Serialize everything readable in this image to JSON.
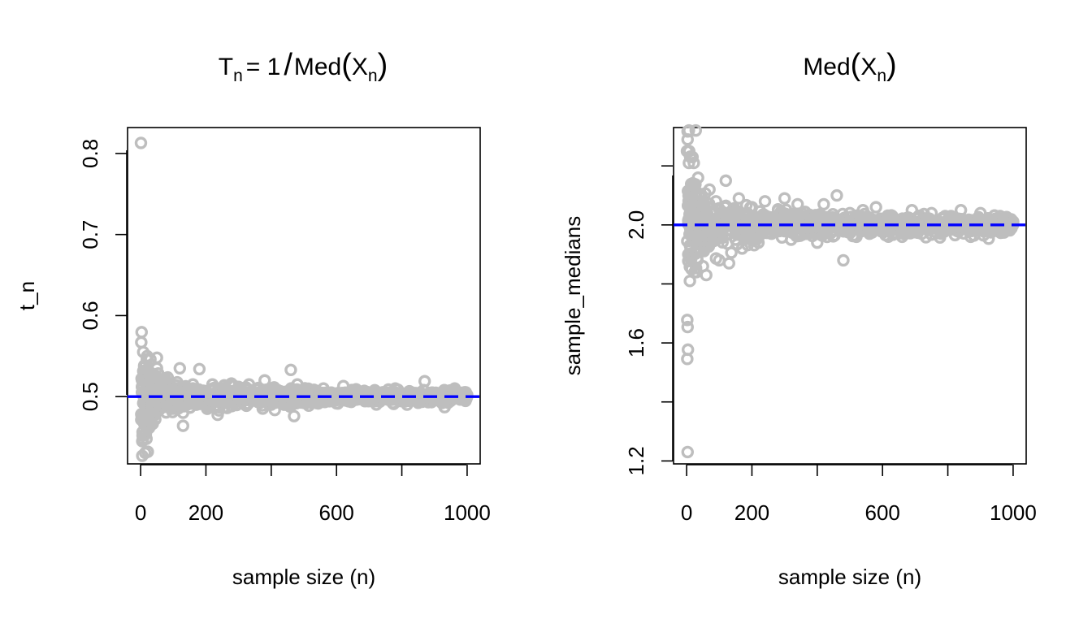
{
  "chart_data": [
    {
      "type": "scatter",
      "title_parts": {
        "t": "T",
        "sub_n": "n",
        "eq": "= 1",
        "slash": "/",
        "med": "Med",
        "lparen": "(",
        "x": "X",
        "sub_x": "n",
        "rparen": ")"
      },
      "xlabel": "sample size (n)",
      "ylabel": "t_n",
      "xlim": [
        -40,
        1040
      ],
      "ylim": [
        0.417,
        0.832
      ],
      "xticks": [
        0,
        200,
        400,
        600,
        800,
        1000
      ],
      "xtick_labels": [
        "0",
        "200",
        "",
        "600",
        "",
        "1000"
      ],
      "yticks": [
        0.5,
        0.6,
        0.7,
        0.8
      ],
      "ytick_labels": [
        "0.5",
        "0.6",
        "0.7",
        "0.8"
      ],
      "reference_line": {
        "y": 0.5,
        "color": "#0000ff",
        "style": "dashed"
      },
      "point_color": "#bebebe",
      "series": [
        {
          "type": "scatter",
          "x": [
            1,
            5,
            8,
            10,
            12,
            15,
            18,
            20,
            22,
            25,
            28,
            30,
            35,
            40,
            45,
            50,
            55,
            60,
            70,
            80,
            90,
            100,
            110,
            120,
            130,
            140,
            150,
            160,
            170,
            180,
            190,
            200,
            220,
            240,
            260,
            280,
            300,
            320,
            340,
            360,
            380,
            400,
            420,
            440,
            460,
            470,
            480,
            500,
            520,
            540,
            560,
            580,
            600,
            630,
            660,
            690,
            720,
            750,
            780,
            810,
            840,
            870,
            900,
            930,
            960,
            1000
          ],
          "y": [
            0.813,
            0.445,
            0.555,
            0.52,
            0.478,
            0.538,
            0.448,
            0.55,
            0.432,
            0.512,
            0.465,
            0.546,
            0.49,
            0.525,
            0.472,
            0.548,
            0.505,
            0.485,
            0.52,
            0.492,
            0.512,
            0.488,
            0.51,
            0.535,
            0.464,
            0.506,
            0.495,
            0.515,
            0.49,
            0.534,
            0.502,
            0.497,
            0.515,
            0.483,
            0.509,
            0.496,
            0.512,
            0.49,
            0.505,
            0.498,
            0.52,
            0.494,
            0.508,
            0.49,
            0.533,
            0.476,
            0.515,
            0.497,
            0.507,
            0.492,
            0.51,
            0.496,
            0.503,
            0.497,
            0.509,
            0.495,
            0.505,
            0.498,
            0.51,
            0.496,
            0.504,
            0.519,
            0.497,
            0.508,
            0.502,
            0.5
          ]
        }
      ]
    },
    {
      "type": "scatter",
      "title_parts": {
        "med": "Med",
        "lparen": "(",
        "x": "X",
        "sub_x": "n",
        "rparen": ")"
      },
      "xlabel": "sample size (n)",
      "ylabel": "sample_medians",
      "xlim": [
        -40,
        1040
      ],
      "ylim": [
        1.19,
        2.33
      ],
      "xticks": [
        0,
        200,
        400,
        600,
        800,
        1000
      ],
      "xtick_labels": [
        "0",
        "200",
        "",
        "600",
        "",
        "1000"
      ],
      "yticks": [
        1.2,
        1.4,
        1.6,
        1.8,
        2.0,
        2.2
      ],
      "ytick_labels": [
        "1.2",
        "",
        "1.6",
        "",
        "2.0",
        ""
      ],
      "reference_line": {
        "y": 2.0,
        "color": "#0000ff",
        "style": "dashed"
      },
      "point_color": "#bebebe",
      "series": [
        {
          "type": "scatter",
          "x": [
            1,
            3,
            5,
            8,
            10,
            12,
            15,
            18,
            20,
            22,
            25,
            28,
            30,
            35,
            40,
            45,
            50,
            55,
            60,
            70,
            80,
            90,
            100,
            110,
            120,
            130,
            140,
            150,
            160,
            170,
            180,
            190,
            200,
            220,
            240,
            260,
            280,
            300,
            320,
            340,
            360,
            380,
            400,
            420,
            440,
            460,
            480,
            500,
            520,
            540,
            560,
            580,
            600,
            630,
            660,
            690,
            720,
            750,
            780,
            810,
            840,
            870,
            900,
            930,
            960,
            1000
          ],
          "y": [
            2.25,
            1.23,
            1.9,
            2.25,
            1.81,
            2.12,
            1.85,
            2.23,
            1.95,
            2.21,
            2.05,
            2.32,
            1.84,
            2.16,
            1.92,
            2.1,
            1.86,
            2.07,
            1.83,
            2.12,
            1.97,
            2.08,
            1.88,
            2.03,
            2.15,
            1.87,
            2.05,
            1.95,
            2.09,
            1.92,
            2.03,
            1.96,
            2.06,
            1.94,
            2.08,
            1.97,
            2.05,
            2.09,
            1.95,
            2.07,
            1.98,
            2.03,
            1.94,
            2.07,
            1.97,
            2.1,
            1.88,
            2.04,
            1.96,
            2.05,
            1.97,
            2.06,
            1.98,
            2.03,
            1.96,
            2.05,
            1.97,
            2.04,
            1.97,
            2.03,
            2.05,
            1.96,
            2.04,
            1.98,
            2.03,
            2.01
          ]
        }
      ]
    }
  ]
}
